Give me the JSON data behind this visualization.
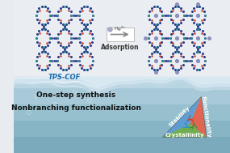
{
  "fig_width": 2.85,
  "fig_height": 1.89,
  "dpi": 100,
  "tps_cof_label": "TPS-COF",
  "tps_cof_color": "#1a6ab0",
  "adsorption_label": "Adsorption",
  "hg_label": "Hg²⁺",
  "text1": "One-step synthesis",
  "text2": "Nonbranching functionalization",
  "tri_stability": "Stability",
  "tri_functionality": "Functionality",
  "tri_crystallinity": "Crystallinity",
  "tri_blue": "#5b9bd5",
  "tri_red": "#e8604a",
  "tri_green": "#70ad47",
  "ring_color": "#2c3e8c",
  "node_red": "#cc3311",
  "node_teal": "#22aa88",
  "hg_dot_color": "#9090c0",
  "bg_top": "#e8ecf0",
  "water_color1": "#b0cad8",
  "water_color2": "#88aabf",
  "water_surface": "#c8dce8"
}
